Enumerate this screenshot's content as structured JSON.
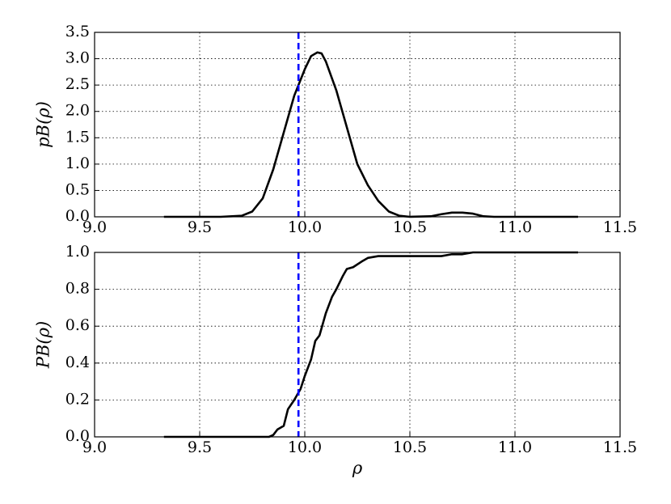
{
  "chart_data": [
    {
      "type": "line",
      "y_label": "pB(ρ)",
      "grid": true,
      "reference_x": 9.97,
      "reference_color": "#0000ff",
      "xlim": [
        9.0,
        11.5
      ],
      "ylim": [
        0,
        3.5
      ],
      "xticks": [
        {
          "value": 9.0,
          "label": "9.0"
        },
        {
          "value": 9.5,
          "label": "9.5"
        },
        {
          "value": 10.0,
          "label": "10.0"
        },
        {
          "value": 10.5,
          "label": "10.5"
        },
        {
          "value": 11.0,
          "label": "11.0"
        },
        {
          "value": 11.5,
          "label": "11.5"
        }
      ],
      "yticks": [
        {
          "value": 0,
          "label": "0.0"
        },
        {
          "value": 0.5,
          "label": "0.5"
        },
        {
          "value": 1.0,
          "label": "1.0"
        },
        {
          "value": 1.5,
          "label": "1.5"
        },
        {
          "value": 2.0,
          "label": "2.0"
        },
        {
          "value": 2.5,
          "label": "2.5"
        },
        {
          "value": 3.0,
          "label": "3.0"
        },
        {
          "value": 3.5,
          "label": "3.5"
        }
      ],
      "x": [
        9.33,
        9.6,
        9.7,
        9.75,
        9.8,
        9.85,
        9.9,
        9.95,
        10.0,
        10.03,
        10.06,
        10.08,
        10.1,
        10.15,
        10.2,
        10.25,
        10.3,
        10.35,
        10.4,
        10.45,
        10.5,
        10.6,
        10.65,
        10.7,
        10.75,
        10.8,
        10.85,
        10.9,
        11.3
      ],
      "series": [
        {
          "color": "#000000",
          "values": [
            0,
            0,
            0.02,
            0.1,
            0.35,
            0.9,
            1.6,
            2.3,
            2.8,
            3.05,
            3.12,
            3.1,
            2.95,
            2.4,
            1.7,
            1.0,
            0.6,
            0.3,
            0.1,
            0.02,
            0,
            0.01,
            0.05,
            0.08,
            0.08,
            0.06,
            0.01,
            0,
            0
          ]
        }
      ]
    },
    {
      "type": "line",
      "y_label": "PB(ρ)",
      "x_label": "ρ",
      "grid": true,
      "reference_x": 9.97,
      "reference_color": "#0000ff",
      "xlim": [
        9.0,
        11.5
      ],
      "ylim": [
        0,
        1.0
      ],
      "xticks": [
        {
          "value": 9.0,
          "label": "9.0"
        },
        {
          "value": 9.5,
          "label": "9.5"
        },
        {
          "value": 10.0,
          "label": "10.0"
        },
        {
          "value": 10.5,
          "label": "10.5"
        },
        {
          "value": 11.0,
          "label": "11.0"
        },
        {
          "value": 11.5,
          "label": "11.5"
        }
      ],
      "yticks": [
        {
          "value": 0,
          "label": "0.0"
        },
        {
          "value": 0.2,
          "label": "0.2"
        },
        {
          "value": 0.4,
          "label": "0.4"
        },
        {
          "value": 0.6,
          "label": "0.6"
        },
        {
          "value": 0.8,
          "label": "0.8"
        },
        {
          "value": 1.0,
          "label": "1.0"
        }
      ],
      "x": [
        9.33,
        9.83,
        9.85,
        9.87,
        9.9,
        9.92,
        9.95,
        9.98,
        10.0,
        10.03,
        10.05,
        10.07,
        10.1,
        10.13,
        10.15,
        10.18,
        10.2,
        10.23,
        10.27,
        10.3,
        10.35,
        10.4,
        10.65,
        10.7,
        10.75,
        10.8,
        11.3
      ],
      "series": [
        {
          "color": "#000000",
          "values": [
            0,
            0,
            0.01,
            0.04,
            0.06,
            0.15,
            0.2,
            0.26,
            0.33,
            0.42,
            0.52,
            0.55,
            0.67,
            0.76,
            0.8,
            0.87,
            0.91,
            0.92,
            0.95,
            0.97,
            0.98,
            0.98,
            0.98,
            0.99,
            0.99,
            1.0,
            1.0
          ]
        }
      ]
    }
  ]
}
